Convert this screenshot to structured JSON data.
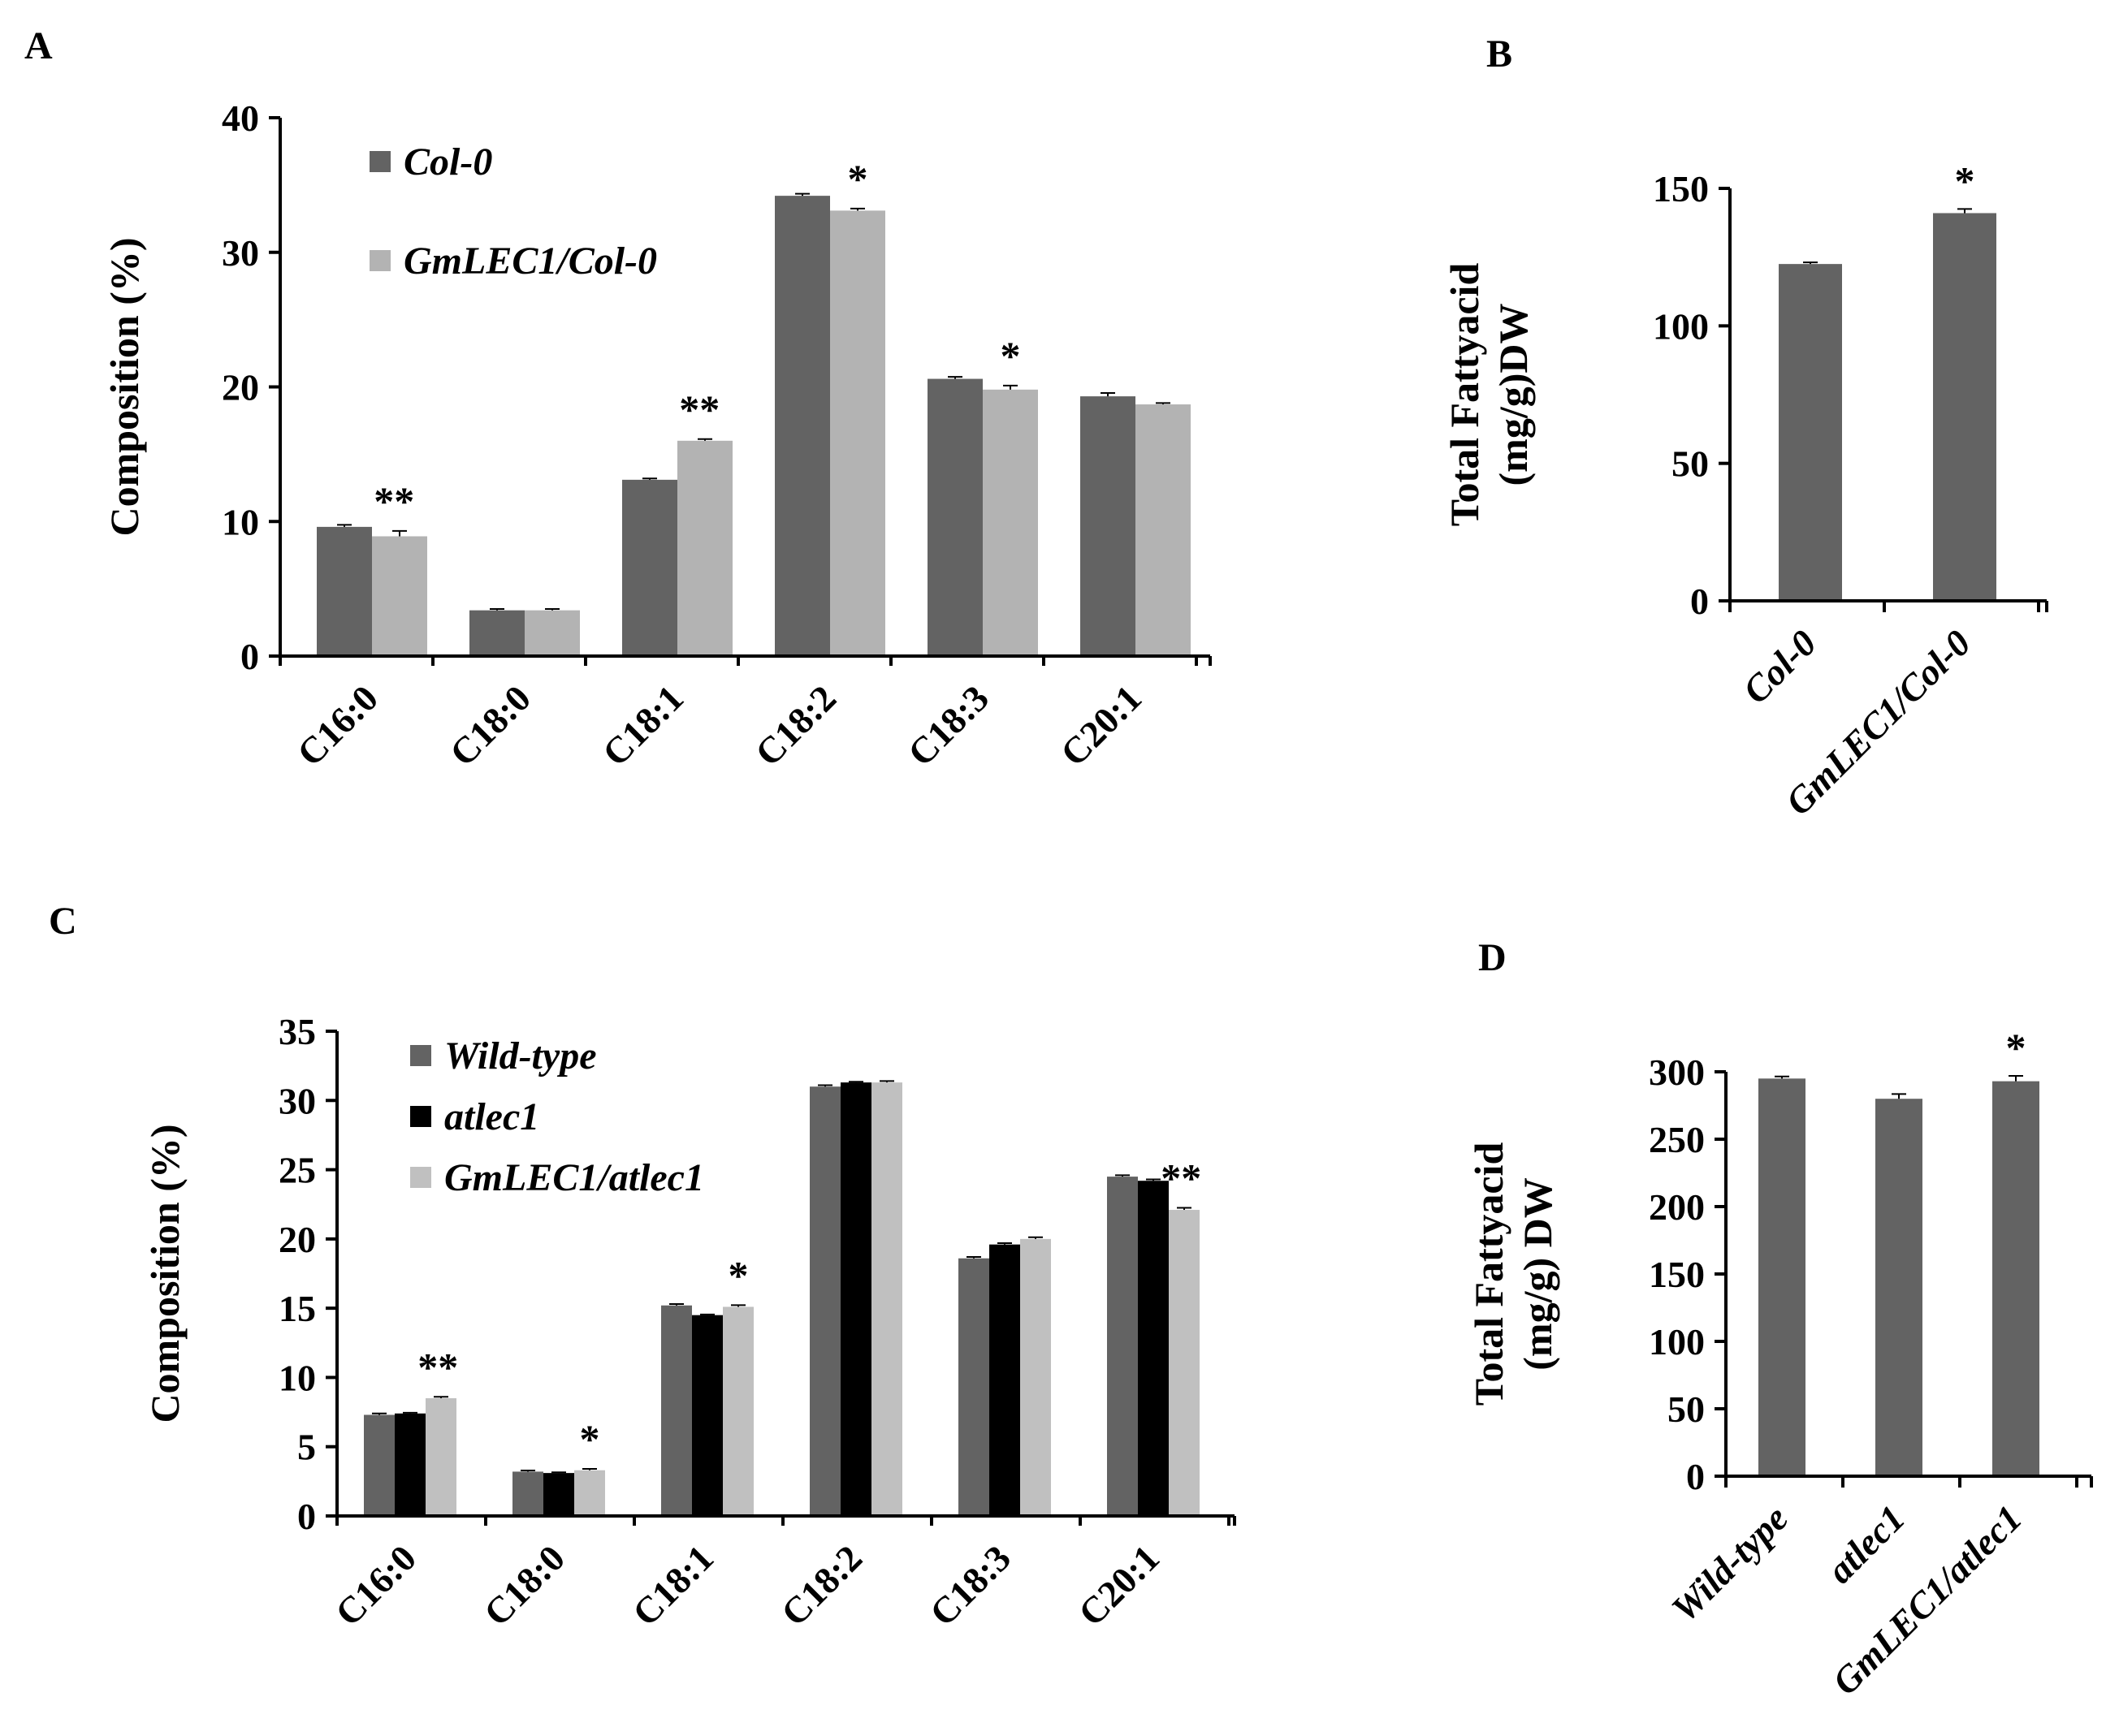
{
  "figure": {
    "chart_data": [
      {
        "panel": "A",
        "type": "bar",
        "ylabel": "Composition (%)",
        "xlabel": "",
        "ylim": [
          0,
          40
        ],
        "yticks": [
          0,
          10,
          20,
          30,
          40
        ],
        "categories": [
          "C16:0",
          "C18:0",
          "C18:1",
          "C18:2",
          "C18:3",
          "C20:1"
        ],
        "italic_categories": false,
        "legend_position": "top-left",
        "series": [
          {
            "name": "Col-0",
            "color": "#636363",
            "values": [
              9.6,
              3.4,
              13.1,
              34.2,
              20.6,
              19.3
            ],
            "errors": [
              0.15,
              0.1,
              0.1,
              0.15,
              0.15,
              0.25
            ]
          },
          {
            "name": "GmLEC1/Col-0",
            "color": "#b3b3b3",
            "values": [
              8.9,
              3.4,
              16.0,
              33.1,
              19.8,
              18.7
            ],
            "errors": [
              0.4,
              0.1,
              0.12,
              0.15,
              0.3,
              0.1
            ]
          }
        ],
        "significance": [
          {
            "category_index": 0,
            "mark": "**"
          },
          {
            "category_index": 2,
            "mark": "**"
          },
          {
            "category_index": 3,
            "mark": "*"
          },
          {
            "category_index": 4,
            "mark": "*"
          }
        ]
      },
      {
        "panel": "B",
        "type": "bar",
        "ylabel": "Total Fattyacid (mg/g)DW",
        "ylabel_lines": [
          "Total Fattyacid",
          "(mg/g)DW"
        ],
        "xlabel": "",
        "ylim": [
          0,
          150
        ],
        "yticks": [
          0,
          50,
          100,
          150
        ],
        "categories": [
          "Col-0",
          "GmLEC1/Col-0"
        ],
        "italic_categories": true,
        "series": [
          {
            "name": "Total",
            "color": "#636363",
            "values": [
              122.5,
              141.0
            ],
            "errors": [
              0.6,
              1.5
            ]
          }
        ],
        "significance": [
          {
            "category_index": 1,
            "mark": "*"
          }
        ]
      },
      {
        "panel": "C",
        "type": "bar",
        "ylabel": "Composition (%)",
        "xlabel": "",
        "ylim": [
          0,
          35
        ],
        "yticks": [
          0,
          5,
          10,
          15,
          20,
          25,
          30,
          35
        ],
        "categories": [
          "C16:0",
          "C18:0",
          "C18:1",
          "C18:2",
          "C18:3",
          "C20:1"
        ],
        "italic_categories": false,
        "legend_position": "top-left",
        "series": [
          {
            "name": "Wild-type",
            "color": "#636363",
            "values": [
              7.3,
              3.2,
              15.2,
              31.0,
              18.6,
              24.5
            ],
            "errors": [
              0.1,
              0.08,
              0.1,
              0.1,
              0.1,
              0.1
            ]
          },
          {
            "name": "atlec1",
            "color": "#000000",
            "values": [
              7.4,
              3.1,
              14.5,
              31.3,
              19.6,
              24.2
            ],
            "errors": [
              0.05,
              0.05,
              0.05,
              0.05,
              0.1,
              0.1
            ]
          },
          {
            "name": "GmLEC1/atlec1",
            "color": "#c0c0c0",
            "values": [
              8.5,
              3.3,
              15.1,
              31.3,
              20.0,
              22.1
            ],
            "errors": [
              0.1,
              0.1,
              0.12,
              0.1,
              0.12,
              0.15
            ]
          }
        ],
        "significance": [
          {
            "category_index": 0,
            "mark": "**"
          },
          {
            "category_index": 1,
            "mark": "*"
          },
          {
            "category_index": 2,
            "mark": "*"
          },
          {
            "category_index": 5,
            "mark": "**"
          }
        ]
      },
      {
        "panel": "D",
        "type": "bar",
        "ylabel": "Total Fattyacid (mg/g) DW",
        "ylabel_lines": [
          "Total Fattyacid",
          "(mg/g) DW"
        ],
        "xlabel": "",
        "ylim": [
          0,
          300
        ],
        "yticks": [
          0,
          50,
          100,
          150,
          200,
          250,
          300
        ],
        "categories": [
          "Wild-type",
          "atlec1",
          "GmLEC1/atlec1"
        ],
        "italic_categories": true,
        "series": [
          {
            "name": "Total",
            "color": "#636363",
            "values": [
              295,
              280,
              293
            ],
            "errors": [
              1.5,
              3.5,
              4.0
            ]
          }
        ],
        "significance": [
          {
            "category_index": 2,
            "mark": "*"
          }
        ]
      }
    ]
  }
}
